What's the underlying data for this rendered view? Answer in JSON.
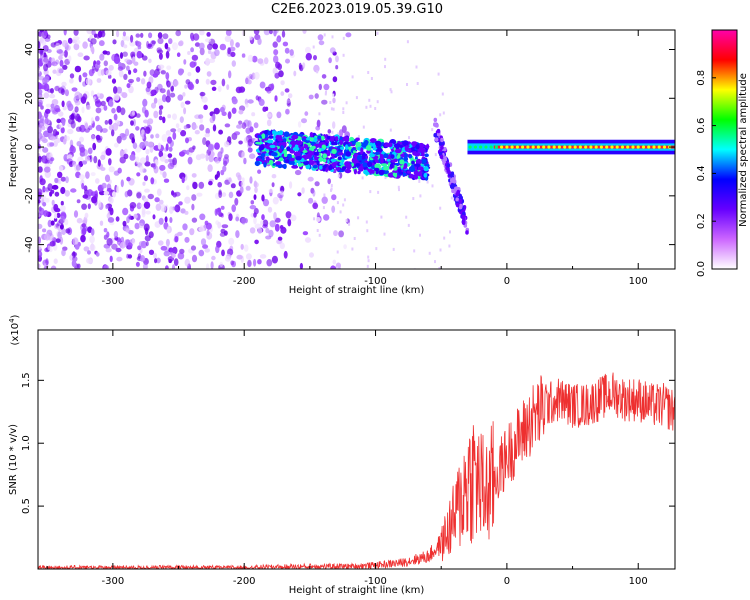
{
  "title": "C2E6.2023.019.05.39.G10",
  "chart_data": [
    {
      "type": "heatmap",
      "xlabel": "Height of straight line (km)",
      "ylabel": "Frequency (Hz)",
      "xlim": [
        -357,
        128
      ],
      "ylim": [
        -50,
        48
      ],
      "xticks": [
        -300,
        -200,
        -100,
        0,
        100
      ],
      "yticks": [
        -40,
        -20,
        0,
        20,
        40
      ],
      "colorbar": {
        "label": "Normalized spectral amplitude",
        "range": [
          0,
          1
        ],
        "ticks": [
          "0.0",
          "0.2",
          "0.4",
          "0.6",
          "0.8"
        ],
        "colors": [
          "#ffffff",
          "#cc66ff",
          "#6600ff",
          "#0000ff",
          "#00ffff",
          "#00ff00",
          "#ffff00",
          "#ff0000",
          "#ff00aa"
        ]
      },
      "features": [
        {
          "segment": "noise",
          "x": [
            -357,
            -150
          ],
          "f": [
            -50,
            48
          ],
          "amplitude": 0.1
        },
        {
          "segment": "signal-broad",
          "x": [
            -190,
            -60
          ],
          "f": [
            -10,
            8
          ],
          "amplitude": 0.4
        },
        {
          "segment": "signal-drop",
          "x": [
            -60,
            -30
          ],
          "f": [
            -40,
            8
          ],
          "amplitude": 0.3
        },
        {
          "segment": "signal-tone",
          "x": [
            -30,
            128
          ],
          "f": [
            -2,
            2
          ],
          "amplitude": 0.9
        }
      ]
    },
    {
      "type": "line",
      "xlabel": "Height of straight line (km)",
      "ylabel": "SNR (10 * v/v)",
      "yscale_label": "(x10",
      "yscale_exp": "4",
      "yscale_close": ")",
      "xlim": [
        -357,
        128
      ],
      "ylim": [
        0,
        1.9
      ],
      "xticks": [
        -300,
        -200,
        -100,
        0,
        100
      ],
      "yticks": [
        "0.5",
        "1.0",
        "1.5"
      ],
      "color": "#ee3030",
      "series": [
        {
          "x": [
            -357,
            -300,
            -250,
            -200,
            -150,
            -120,
            -100,
            -80,
            -60,
            -50,
            -45,
            -40,
            -35,
            -30,
            -25,
            -20,
            -15,
            -10,
            -5,
            0,
            10,
            20,
            30,
            40,
            50,
            60,
            70,
            80,
            90,
            100,
            110,
            120,
            128
          ],
          "y": [
            0.01,
            0.01,
            0.01,
            0.01,
            0.02,
            0.02,
            0.03,
            0.05,
            0.1,
            0.2,
            0.3,
            0.4,
            0.55,
            0.7,
            0.75,
            0.65,
            0.6,
            0.7,
            0.8,
            0.9,
            1.05,
            1.2,
            1.3,
            1.35,
            1.3,
            1.3,
            1.35,
            1.4,
            1.35,
            1.35,
            1.3,
            1.3,
            1.25
          ]
        }
      ]
    }
  ]
}
